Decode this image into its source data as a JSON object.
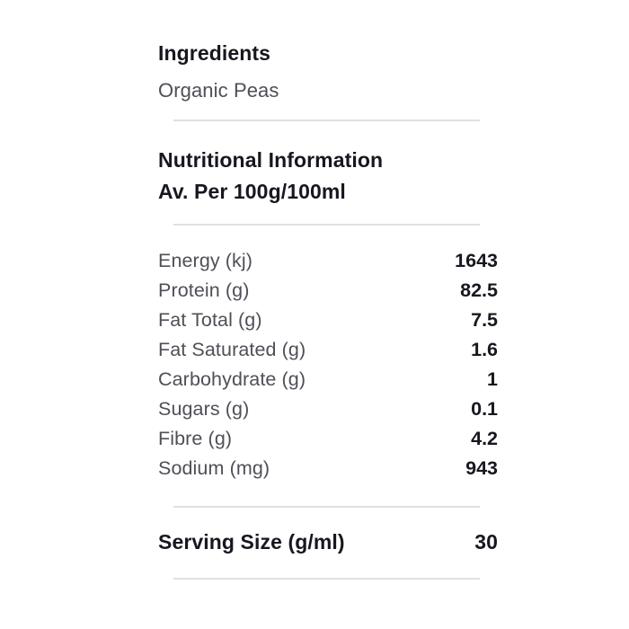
{
  "page": {
    "background_color": "#ffffff",
    "divider_color": "#e0e0e0",
    "heading_color": "#17171f",
    "label_color": "#4f4f57"
  },
  "ingredients_section": {
    "title": "Ingredients",
    "text": "Organic Peas"
  },
  "nutrition_section": {
    "title": "Nutritional Information",
    "subtitle": "Av. Per 100g/100ml",
    "rows": [
      {
        "label": "Energy (kj)",
        "value": "1643"
      },
      {
        "label": "Protein (g)",
        "value": "82.5"
      },
      {
        "label": "Fat Total (g)",
        "value": "7.5"
      },
      {
        "label": "Fat Saturated (g)",
        "value": "1.6"
      },
      {
        "label": "Carbohydrate (g)",
        "value": "1"
      },
      {
        "label": "Sugars (g)",
        "value": "0.1"
      },
      {
        "label": "Fibre (g)",
        "value": "4.2"
      },
      {
        "label": "Sodium (mg)",
        "value": "943"
      }
    ]
  },
  "serving_section": {
    "label": "Serving Size (g/ml)",
    "value": "30"
  }
}
